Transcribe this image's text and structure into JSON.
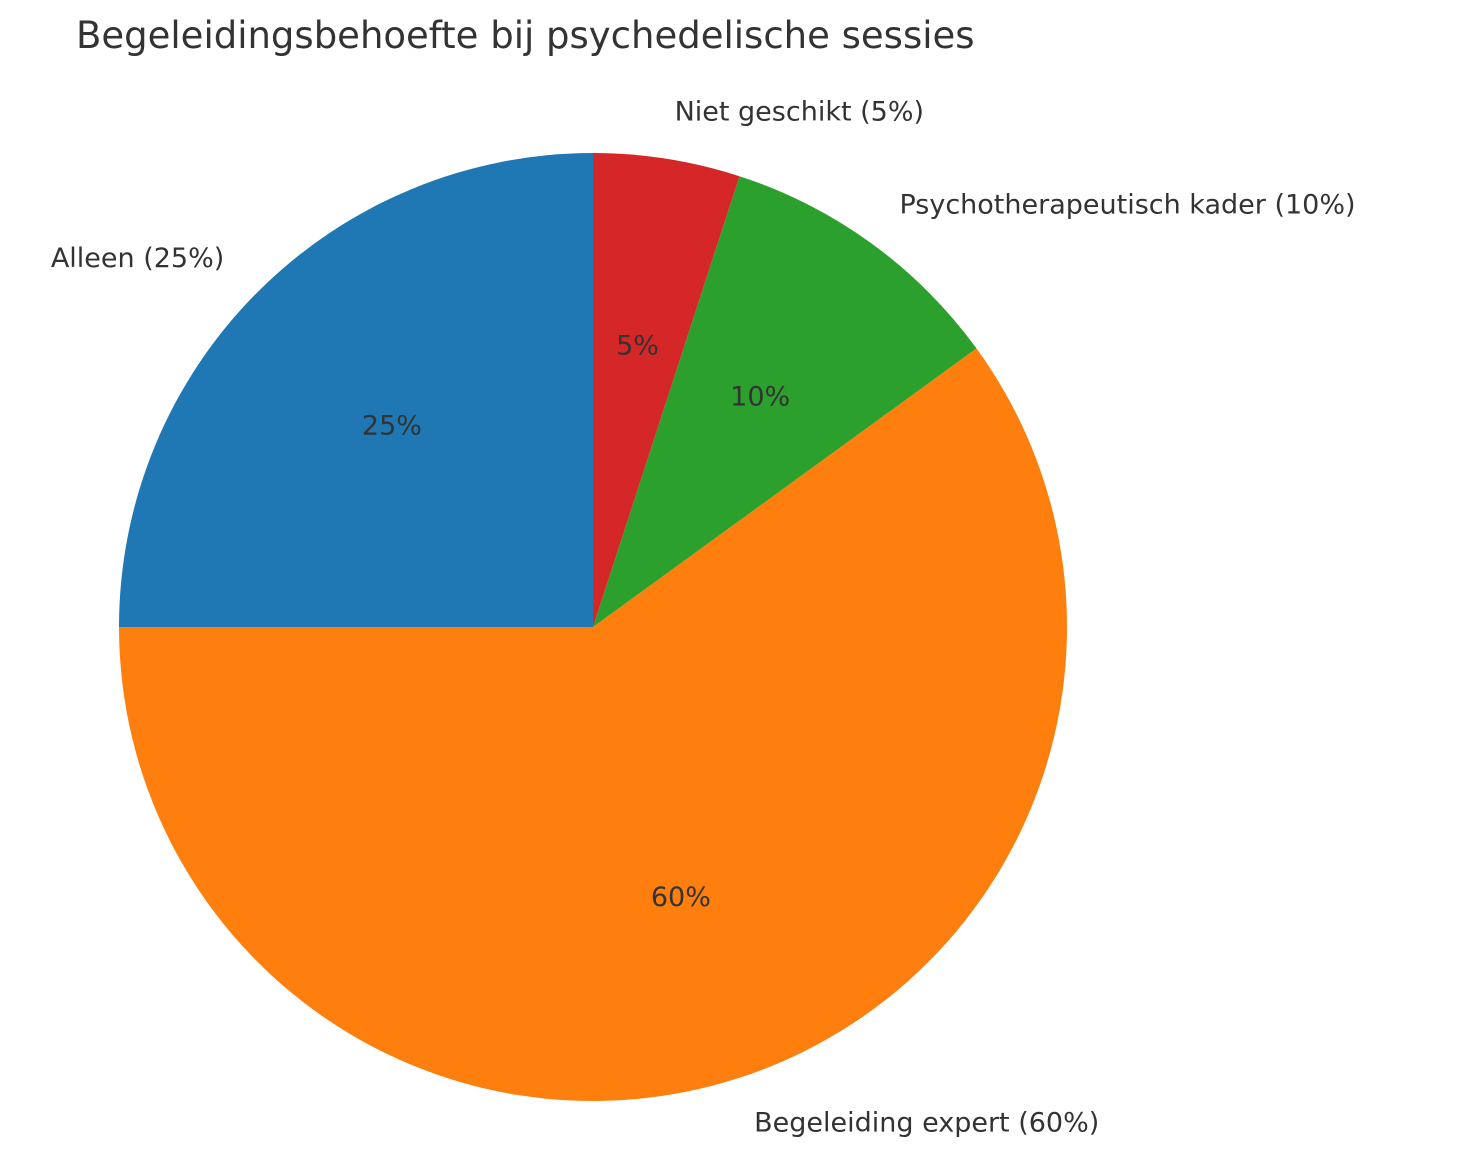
{
  "chart_data": {
    "type": "pie",
    "title": "Begeleidingsbehoefte bij psychedelische sessies",
    "startangle": 90,
    "direction": "counterclockwise",
    "slices": [
      {
        "label": "Alleen (25%)",
        "name": "Alleen",
        "value": 25,
        "pct_label": "25%",
        "color": "#1f77b4"
      },
      {
        "label": "Begeleiding expert (60%)",
        "name": "Begeleiding expert",
        "value": 60,
        "pct_label": "60%",
        "color": "#ff7f0e"
      },
      {
        "label": "Psychotherapeutisch kader (10%)",
        "name": "Psychotherapeutisch kader",
        "value": 10,
        "pct_label": "10%",
        "color": "#2ca02c"
      },
      {
        "label": "Niet geschikt (5%)",
        "name": "Niet geschikt",
        "value": 5,
        "pct_label": "5%",
        "color": "#d62728"
      }
    ],
    "categories": [
      "Alleen",
      "Begeleiding expert",
      "Psychotherapeutisch kader",
      "Niet geschikt"
    ],
    "values": [
      25,
      60,
      10,
      5
    ],
    "legend": null
  }
}
